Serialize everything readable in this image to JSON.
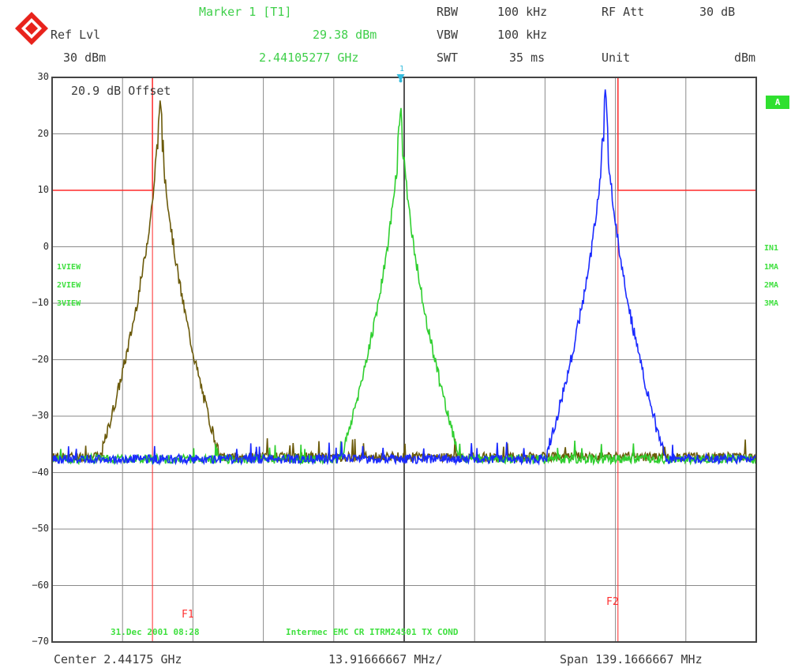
{
  "header": {
    "marker_label": "Marker 1 [T1]",
    "ref_lvl_label": "Ref Lvl",
    "ref_lvl_value": "30 dBm",
    "marker_level": "29.38 dBm",
    "marker_freq": "2.44105277 GHz",
    "rbw_label": "RBW",
    "rbw_value": "100 kHz",
    "vbw_label": "VBW",
    "vbw_value": "100 kHz",
    "swt_label": "SWT",
    "swt_value": "35 ms",
    "rfatt_label": "RF Att",
    "rfatt_value": "30 dB",
    "unit_label": "Unit",
    "unit_value": "dBm"
  },
  "plot": {
    "offset_note": "20.9 dB Offset",
    "trace_mode_left": [
      "1VIEW",
      "2VIEW",
      "3VIEW"
    ],
    "trace_mode_right": [
      "IN1",
      "1MA",
      "2MA",
      "3MA"
    ],
    "a_badge": "A",
    "f1_label": "F1",
    "f2_label": "F2",
    "marker_num": "1",
    "date_text": "31.Dec 2001 08:28",
    "title_text": "Intermec EMC CR ITRM24501 TX COND"
  },
  "footer": {
    "center": "Center 2.44175 GHz",
    "div": "13.91666667 MHz/",
    "span": "Span 139.1666667 MHz"
  },
  "colors": {
    "grid": "#8a8a8a",
    "frame": "#444444",
    "limit": "#ff2a2a",
    "trace1": "#6b5a0a",
    "trace2": "#2fcf2f",
    "trace3": "#1a2aff",
    "marker": "#33bbdd",
    "label_green": "#3fcf4a"
  },
  "chart_data": {
    "type": "line",
    "x_unit": "MHz",
    "y_unit": "dBm",
    "xlim": [
      2372.1667,
      2511.3333
    ],
    "ylim": [
      -70,
      30
    ],
    "yticks": [
      30,
      20,
      10,
      0,
      -10,
      -20,
      -30,
      -40,
      -50,
      -60,
      -70
    ],
    "grid": true,
    "limit_line": {
      "x": [
        2372.1667,
        2392.0,
        2392.0,
        2484.0,
        2484.0,
        2511.3333
      ],
      "y": [
        10,
        10,
        30,
        30,
        10,
        10
      ]
    },
    "f1_freq": 2392.0,
    "f2_freq": 2484.0,
    "marker": {
      "freq": 2441.05277,
      "level": 29.38
    },
    "series": [
      {
        "center": 2393.5,
        "peak": 29.8,
        "floor": -37.2,
        "shoulder": true
      },
      {
        "center": 2441.05,
        "peak": 29.4,
        "floor": -37.6,
        "shoulder": true
      },
      {
        "center": 2481.5,
        "peak": 29.6,
        "floor": -37.6,
        "shoulder": true
      }
    ]
  }
}
